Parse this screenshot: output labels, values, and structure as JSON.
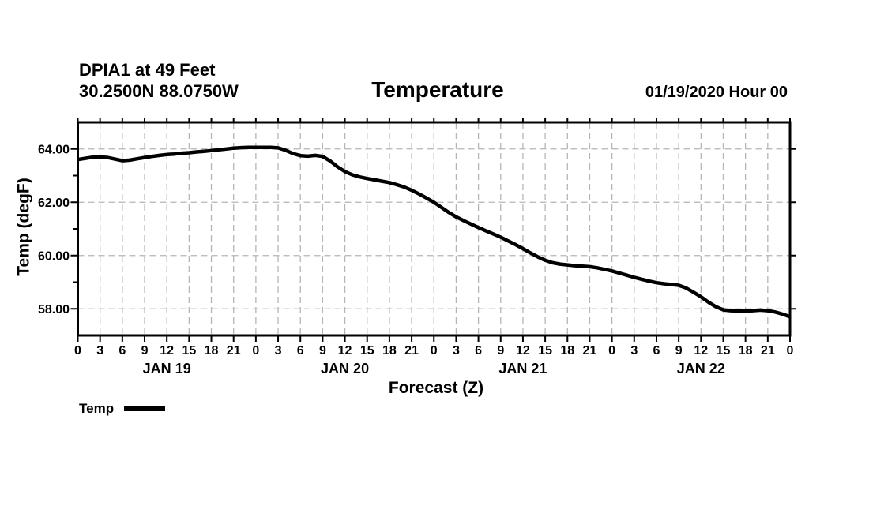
{
  "header": {
    "station_line1": "DPIA1 at 49 Feet",
    "station_line2": "30.2500N 88.0750W",
    "title": "Temperature",
    "run_info": "01/19/2020 Hour 00"
  },
  "legend": {
    "label": "Temp",
    "swatch_color": "#000000"
  },
  "colors": {
    "line": "#000000",
    "grid": "#b5b5b5",
    "frame": "#000000",
    "text": "#000000",
    "background": "#ffffff"
  },
  "chart_data": {
    "type": "line",
    "title": "Temperature",
    "xlabel": "Forecast (Z)",
    "ylabel": "Temp (degF)",
    "x_range": [
      0,
      96
    ],
    "x_step_hours": 1,
    "ylim": [
      57,
      65
    ],
    "y_ticks": [
      58,
      60,
      62,
      64
    ],
    "y_tick_labels": [
      "58.00",
      "60.00",
      "62.00",
      "64.00"
    ],
    "y_minor_ticks": [
      59,
      61,
      63
    ],
    "grid": "dashed",
    "legend_position": "bottom-left",
    "x_tick_hours": [
      0,
      3,
      6,
      9,
      12,
      15,
      18,
      21,
      24,
      27,
      30,
      33,
      36,
      39,
      42,
      45,
      48,
      51,
      54,
      57,
      60,
      63,
      66,
      69,
      72,
      75,
      78,
      81,
      84,
      87,
      90,
      93,
      96
    ],
    "x_tick_labels": [
      "0",
      "3",
      "6",
      "9",
      "12",
      "15",
      "18",
      "21",
      "0",
      "3",
      "6",
      "9",
      "12",
      "15",
      "18",
      "21",
      "0",
      "3",
      "6",
      "9",
      "12",
      "15",
      "18",
      "21",
      "0",
      "3",
      "6",
      "9",
      "12",
      "15",
      "18",
      "21",
      "0"
    ],
    "day_labels": [
      {
        "text": "JAN 19",
        "center_hour": 12
      },
      {
        "text": "JAN 20",
        "center_hour": 36
      },
      {
        "text": "JAN 21",
        "center_hour": 60
      },
      {
        "text": "JAN 22",
        "center_hour": 84
      }
    ],
    "series": [
      {
        "name": "Temp",
        "color": "#000000",
        "values": [
          63.6,
          63.65,
          63.69,
          63.7,
          63.68,
          63.62,
          63.56,
          63.58,
          63.63,
          63.68,
          63.72,
          63.76,
          63.79,
          63.81,
          63.84,
          63.86,
          63.89,
          63.91,
          63.94,
          63.97,
          64.0,
          64.03,
          64.05,
          64.06,
          64.06,
          64.06,
          64.06,
          64.04,
          63.95,
          63.83,
          63.75,
          63.73,
          63.76,
          63.72,
          63.55,
          63.33,
          63.15,
          63.03,
          62.95,
          62.89,
          62.84,
          62.79,
          62.74,
          62.66,
          62.57,
          62.45,
          62.31,
          62.16,
          62.0,
          61.81,
          61.62,
          61.45,
          61.31,
          61.18,
          61.05,
          60.93,
          60.81,
          60.69,
          60.55,
          60.41,
          60.26,
          60.1,
          59.95,
          59.82,
          59.73,
          59.68,
          59.65,
          59.62,
          59.6,
          59.58,
          59.54,
          59.48,
          59.42,
          59.34,
          59.26,
          59.18,
          59.11,
          59.04,
          58.98,
          58.94,
          58.91,
          58.88,
          58.78,
          58.62,
          58.45,
          58.25,
          58.08,
          57.96,
          57.93,
          57.92,
          57.92,
          57.93,
          57.95,
          57.93,
          57.88,
          57.8,
          57.7
        ]
      }
    ]
  }
}
